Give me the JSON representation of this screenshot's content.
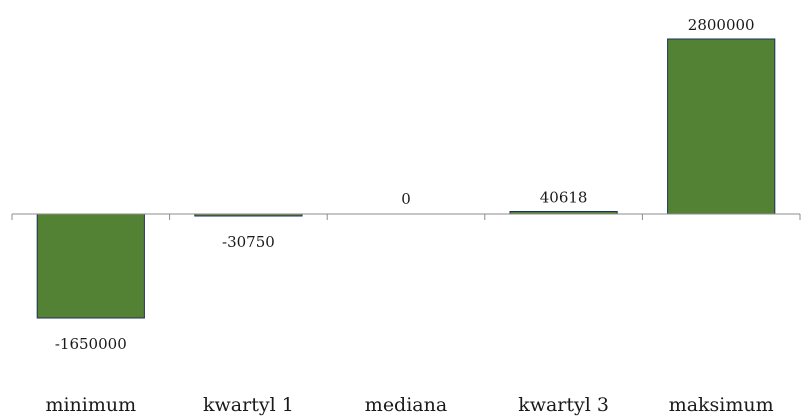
{
  "chart_data": {
    "type": "bar",
    "title": "",
    "xlabel": "",
    "ylabel": "",
    "categories": [
      "minimum",
      "kwartyl 1",
      "mediana",
      "kwartyl 3",
      "maksimum"
    ],
    "series": [
      {
        "values": [
          -1650000,
          -30750,
          0,
          40618,
          2800000
        ],
        "data_labels": [
          "-1650000",
          "-30750",
          "0",
          "40618",
          "2800000"
        ]
      }
    ],
    "ylim": [
      -1650000,
      2800000
    ],
    "grid": false,
    "legend": "none",
    "colors": {
      "bar_fill": "#548235",
      "bar_stroke": "#1f2d5a",
      "axis": "#8c8c8c",
      "text": "#1a1a1a"
    }
  }
}
